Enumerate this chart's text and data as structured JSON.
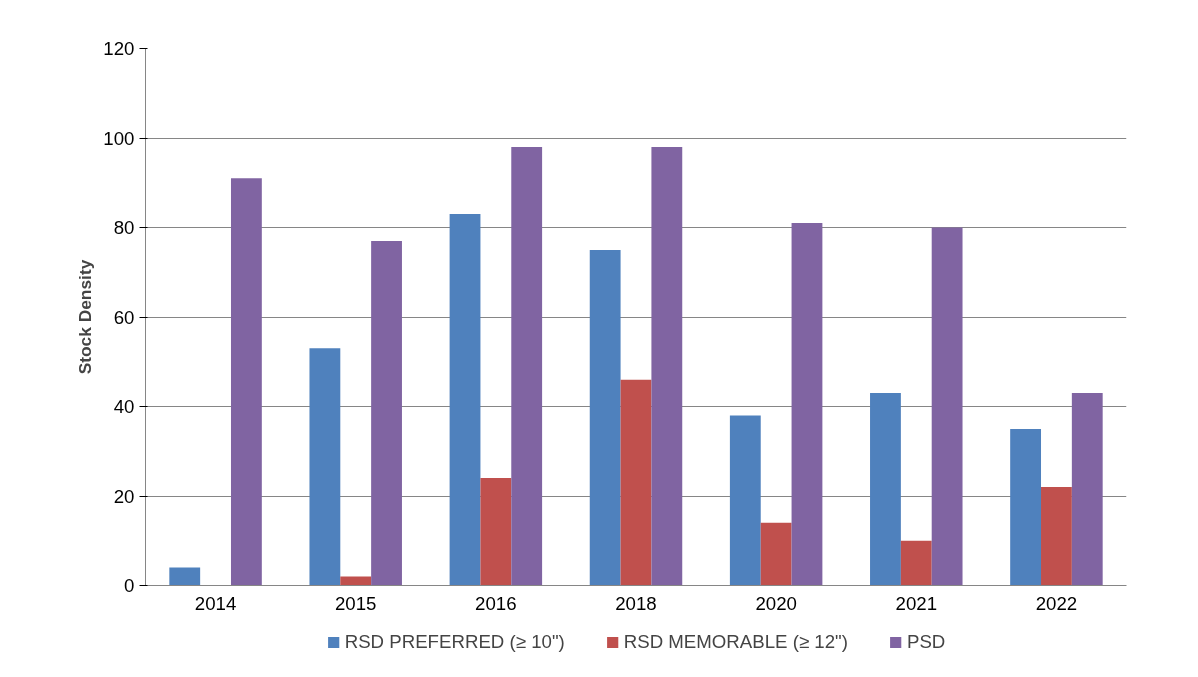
{
  "chart_data": {
    "type": "bar",
    "ylabel": "Stock Density",
    "categories": [
      "2014",
      "2015",
      "2016",
      "2018",
      "2020",
      "2021",
      "2022"
    ],
    "series": [
      {
        "name": "RSD PREFERRED (≥ 10\")",
        "color": "#4f81bd",
        "values": [
          4,
          53,
          83,
          75,
          38,
          43,
          35
        ]
      },
      {
        "name": "RSD MEMORABLE (≥ 12\")",
        "color": "#c0504d",
        "values": [
          0,
          2,
          24,
          46,
          14,
          10,
          22
        ]
      },
      {
        "name": "PSD",
        "color": "#8064a2",
        "values": [
          91,
          77,
          98,
          98,
          81,
          80,
          43
        ]
      }
    ],
    "ylim": [
      0,
      120
    ],
    "yticks": [
      0,
      20,
      40,
      60,
      80,
      100,
      120
    ],
    "grid": "y",
    "legend": "bottom"
  }
}
